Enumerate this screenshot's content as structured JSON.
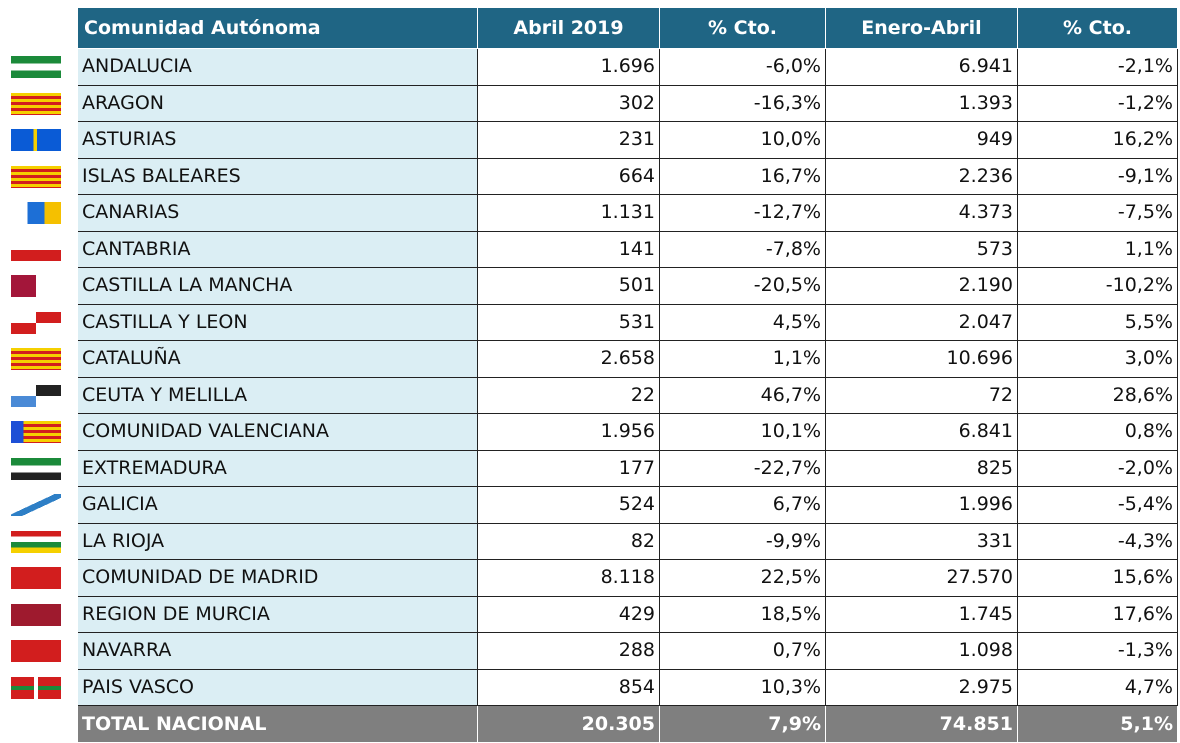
{
  "table": {
    "header": [
      "Comunidad Autónoma",
      "Abril 2019",
      "% Cto.",
      "Enero-Abril",
      "% Cto."
    ],
    "rows": [
      [
        "ANDALUCIA",
        "1.696",
        "-6,0%",
        "6.941",
        "-2,1%"
      ],
      [
        "ARAGON",
        "302",
        "-16,3%",
        "1.393",
        "-1,2%"
      ],
      [
        "ASTURIAS",
        "231",
        "10,0%",
        "949",
        "16,2%"
      ],
      [
        "ISLAS BALEARES",
        "664",
        "16,7%",
        "2.236",
        "-9,1%"
      ],
      [
        "CANARIAS",
        "1.131",
        "-12,7%",
        "4.373",
        "-7,5%"
      ],
      [
        "CANTABRIA",
        "141",
        "-7,8%",
        "573",
        "1,1%"
      ],
      [
        "CASTILLA  LA MANCHA",
        "501",
        "-20,5%",
        "2.190",
        "-10,2%"
      ],
      [
        "CASTILLA Y LEON",
        "531",
        "4,5%",
        "2.047",
        "5,5%"
      ],
      [
        "CATALUÑA",
        "2.658",
        "1,1%",
        "10.696",
        "3,0%"
      ],
      [
        "CEUTA Y MELILLA",
        "22",
        "46,7%",
        "72",
        "28,6%"
      ],
      [
        "COMUNIDAD VALENCIANA",
        "1.956",
        "10,1%",
        "6.841",
        "0,8%"
      ],
      [
        "EXTREMADURA",
        "177",
        "-22,7%",
        "825",
        "-2,0%"
      ],
      [
        "GALICIA",
        "524",
        "6,7%",
        "1.996",
        "-5,4%"
      ],
      [
        "LA RIOJA",
        "82",
        "-9,9%",
        "331",
        "-4,3%"
      ],
      [
        "COMUNIDAD DE MADRID",
        "8.118",
        "22,5%",
        "27.570",
        "15,6%"
      ],
      [
        "REGION DE MURCIA",
        "429",
        "18,5%",
        "1.745",
        "17,6%"
      ],
      [
        "NAVARRA",
        "288",
        "0,7%",
        "1.098",
        "-1,3%"
      ],
      [
        "PAIS VASCO",
        "854",
        "10,3%",
        "2.975",
        "4,7%"
      ]
    ],
    "total": [
      "TOTAL NACIONAL",
      "20.305",
      "7,9%",
      "74.851",
      "5,1%"
    ]
  }
}
